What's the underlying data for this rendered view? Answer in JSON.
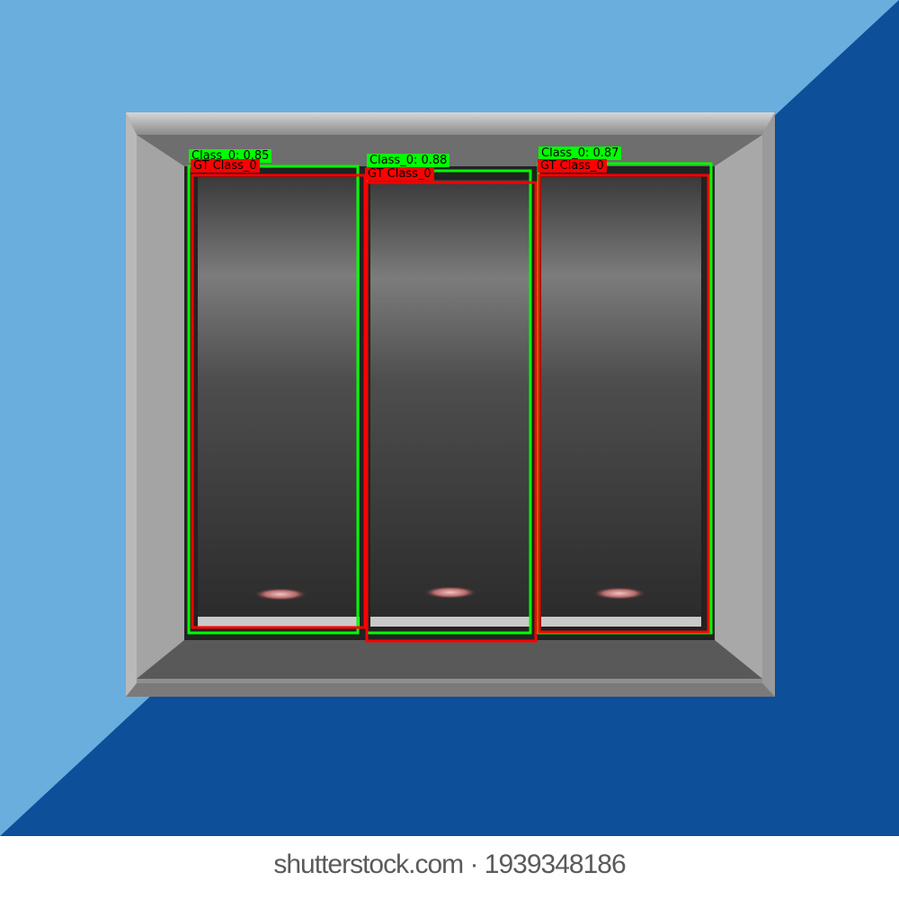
{
  "scene": {
    "subject": "three-gang-rocker-wall-switch",
    "colors": {
      "wall_light": "#6aaede",
      "wall_dark": "#0e4f99",
      "plate_outer": "#a9a9a9",
      "plate_inner": "#5f5f5f",
      "rocker": "#3c3c3c",
      "indicator": "#b86a6a",
      "pred_box": "#00ff00",
      "gt_box": "#ff0000"
    }
  },
  "detections": {
    "predictions": [
      {
        "label": "Class_0: 0.85"
      },
      {
        "label": "Class_0: 0.88"
      },
      {
        "label": "Class_0: 0.87"
      }
    ],
    "ground_truth": [
      {
        "label": "GT Class_0"
      },
      {
        "label": "GT Class_0"
      },
      {
        "label": "GT Class_0"
      }
    ]
  },
  "watermark": {
    "text": "shutterstock.com · 1939348186"
  }
}
